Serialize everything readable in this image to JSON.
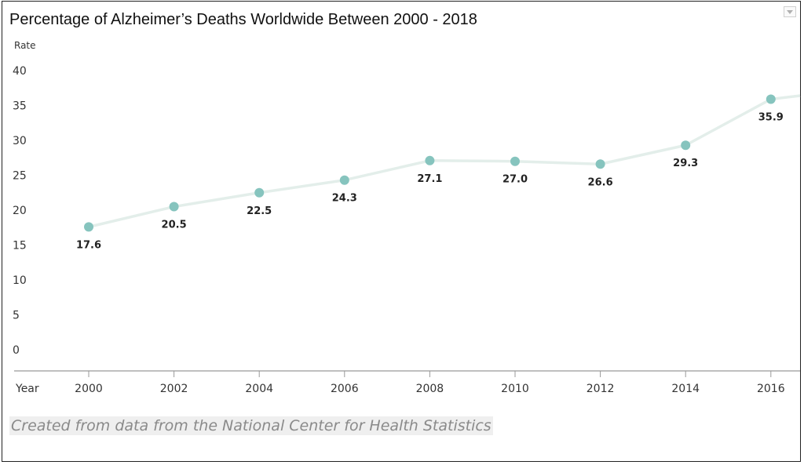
{
  "chart_data": {
    "type": "line",
    "title": "Percentage of Alzheimer’s Deaths Worldwide Between 2000 - 2018",
    "ylabel": "Rate",
    "xlabel": "Year",
    "ylim": [
      0,
      40
    ],
    "yticks": [
      "0",
      "5",
      "10",
      "15",
      "20",
      "25",
      "30",
      "35",
      "40"
    ],
    "x": [
      "2000",
      "2002",
      "2004",
      "2006",
      "2008",
      "2010",
      "2012",
      "2014",
      "2016"
    ],
    "values": [
      17.6,
      20.5,
      22.5,
      24.3,
      27.1,
      27.0,
      26.6,
      29.3,
      35.9
    ],
    "data_labels": [
      "17.6",
      "20.5",
      "22.5",
      "24.3",
      "27.1",
      "27.0",
      "26.6",
      "29.3",
      "35.9"
    ],
    "line_end_value": 36.4,
    "grid": false,
    "colors": {
      "marker": "#86c4be",
      "line": "#e3eeea",
      "axis": "#999999"
    }
  },
  "source_note": "Created from data from the National Center for Health Statistics",
  "icons": {
    "menu": "chevron-down-icon"
  }
}
